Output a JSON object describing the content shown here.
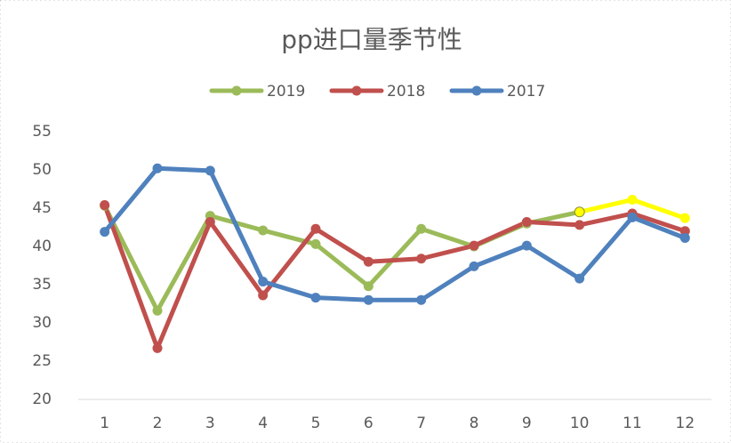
{
  "chart_data": {
    "type": "line",
    "title": "pp进口量季节性",
    "categories": [
      "1",
      "2",
      "3",
      "4",
      "5",
      "6",
      "7",
      "8",
      "9",
      "10",
      "11",
      "12"
    ],
    "series": [
      {
        "name": "2019",
        "color": "#9bbb59",
        "values": [
          45.3,
          31.6,
          44.0,
          42.1,
          40.3,
          34.8,
          42.3,
          40.0,
          43.0,
          44.5,
          46.1,
          43.7
        ],
        "highlight_from": 9,
        "highlight_color": "#ffff00"
      },
      {
        "name": "2018",
        "color": "#c0504d",
        "values": [
          45.4,
          26.7,
          43.2,
          33.6,
          42.3,
          38.0,
          38.4,
          40.1,
          43.2,
          42.8,
          44.3,
          42.0
        ]
      },
      {
        "name": "2017",
        "color": "#4f81bd",
        "values": [
          41.9,
          50.2,
          49.9,
          35.4,
          33.3,
          33.0,
          33.0,
          37.4,
          40.1,
          35.8,
          43.8,
          41.1
        ]
      }
    ],
    "ylim": [
      20,
      55
    ],
    "yticks": [
      20,
      25,
      30,
      35,
      40,
      45,
      50,
      55
    ],
    "grid": false,
    "legend": "top"
  }
}
